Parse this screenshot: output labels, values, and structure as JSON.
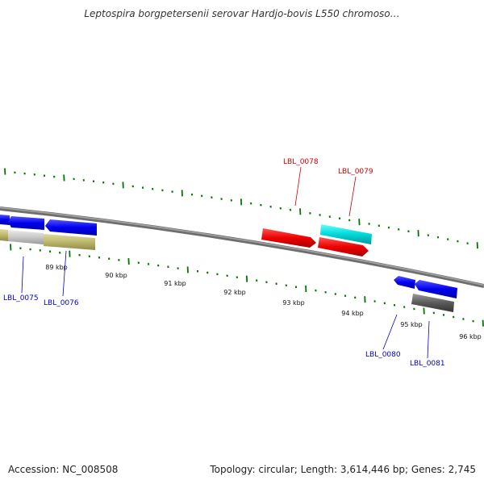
{
  "title": "Leptospira borgpetersenii serovar Hardjo-bovis L550 chromoso…",
  "footer": {
    "accession": "Accession: NC_008508",
    "topology": "Topology: circular; Length: 3,614,446 bp; Genes: 2,745"
  },
  "scale": {
    "kbp_labels": [
      "89 kbp",
      "90 kbp",
      "91 kbp",
      "92 kbp",
      "93 kbp",
      "94 kbp",
      "95 kbp",
      "96 kbp"
    ]
  },
  "genes": [
    {
      "id": "LBL_0075",
      "label": "LBL_0075",
      "strand": "-",
      "color": "#c8c8c8",
      "label_color": "#0000cc"
    },
    {
      "id": "LBL_0076",
      "label": "LBL_0076",
      "strand": "-",
      "color": "#bdb76b",
      "label_color": "#0000cc"
    },
    {
      "id": "LBL_0078",
      "label": "LBL_0078",
      "strand": "+",
      "color": "#ff0000",
      "label_color": "#cc0000"
    },
    {
      "id": "LBL_0079",
      "label": "LBL_0079",
      "strand": "+",
      "color": "#ff0000",
      "label_color": "#cc0000"
    },
    {
      "id": "LBL_0080",
      "label": "LBL_0080",
      "strand": "-",
      "color": "#0000ff",
      "label_color": "#0000cc"
    },
    {
      "id": "LBL_0081",
      "label": "LBL_0081",
      "strand": "-",
      "color": "#555555",
      "label_color": "#0000cc"
    }
  ],
  "colors": {
    "backbone": "#808080",
    "tick_green": "#007700",
    "forward_gene": "#ff0000",
    "reverse_gene": "#0000ff",
    "gc_cyan": "#00cccc",
    "gc_gray": "#555555",
    "gc_olive": "#bdb76b",
    "gc_light": "#c8c8c8"
  }
}
